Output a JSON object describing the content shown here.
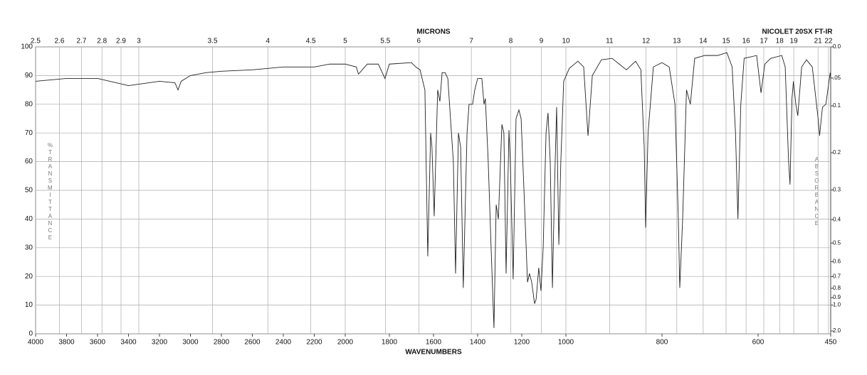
{
  "chart_data": {
    "type": "line",
    "title": "NICOLET 20SX FT-IR",
    "xlabel": "WAVENUMBERS",
    "x2label": "MICRONS",
    "ylabel": "%TRANSMITTANCE",
    "y2label": "ABSORBANCE",
    "x": [
      4000,
      3800,
      3600,
      3400,
      3200,
      3100,
      3080,
      3060,
      3000,
      2900,
      2800,
      2600,
      2400,
      2200,
      2100,
      2000,
      1950,
      1940,
      1900,
      1850,
      1820,
      1800,
      1700,
      1680,
      1661,
      1639,
      1626,
      1613,
      1607,
      1597,
      1581,
      1571,
      1561,
      1548,
      1535,
      1523,
      1510,
      1500,
      1487,
      1477,
      1465,
      1448,
      1439,
      1423,
      1413,
      1400,
      1381,
      1371,
      1365,
      1352,
      1339,
      1326,
      1316,
      1306,
      1290,
      1281,
      1271,
      1258,
      1252,
      1239,
      1226,
      1213,
      1203,
      1190,
      1174,
      1165,
      1155,
      1142,
      1135,
      1123,
      1113,
      1103,
      1090,
      1081,
      1071,
      1061,
      1052,
      1042,
      1032,
      1023,
      1010,
      993,
      975,
      963,
      954,
      945,
      926,
      904,
      889,
      874,
      855,
      844,
      837,
      834,
      829,
      818,
      800,
      785,
      773,
      766,
      763,
      757,
      749,
      741,
      732,
      711,
      684,
      665,
      654,
      647,
      642,
      636,
      629,
      603,
      594,
      586,
      574,
      551,
      544,
      537,
      534,
      530,
      527,
      522,
      518,
      510,
      500,
      488,
      476,
      473,
      467,
      460,
      451,
      450
    ],
    "series": [
      {
        "name": "%T",
        "color": "#222222",
        "values": [
          88,
          89,
          89,
          86.5,
          88,
          87.5,
          85,
          88,
          90,
          91,
          91.5,
          92,
          93,
          93,
          94,
          94,
          93,
          90.5,
          94,
          94,
          89,
          94,
          94.5,
          93,
          92,
          85,
          27,
          70,
          65,
          41,
          85,
          81,
          91,
          91,
          89,
          75,
          60,
          21,
          70,
          65,
          16,
          70,
          80,
          80,
          85,
          89,
          89,
          80,
          82,
          60,
          30,
          2,
          45,
          40,
          73,
          70,
          21,
          71,
          60,
          19,
          75,
          78,
          75,
          50,
          18,
          21,
          18,
          10.5,
          12,
          23,
          15,
          30,
          70,
          77,
          60,
          16,
          50,
          79,
          31,
          60,
          88,
          92.5,
          95,
          93,
          69,
          90,
          95.5,
          96,
          94,
          92,
          95,
          92,
          65,
          37,
          70,
          93,
          94.5,
          93,
          80,
          40,
          16,
          40,
          85,
          80,
          96,
          97,
          97,
          98,
          93,
          70,
          40,
          80,
          96,
          97,
          84,
          94,
          96,
          97,
          93,
          60,
          52,
          82,
          88,
          80,
          76,
          93,
          95.5,
          93,
          75,
          69,
          79,
          80,
          91,
          89
        ]
      }
    ],
    "xlim": [
      4000,
      450
    ],
    "xticks": [
      4000,
      3800,
      3600,
      3400,
      3200,
      3000,
      2800,
      2600,
      2400,
      2200,
      2000,
      1800,
      1600,
      1400,
      1200,
      1000,
      800,
      600,
      450
    ],
    "x2ticks": [
      2.5,
      2.6,
      2.7,
      2.8,
      2.9,
      3,
      3.5,
      4,
      4.5,
      5,
      5.5,
      6,
      7,
      8,
      9,
      10,
      11,
      12,
      13,
      14,
      15,
      16,
      17,
      18,
      19,
      21,
      22
    ],
    "ylim": [
      0,
      100
    ],
    "yticks": [
      0,
      10,
      20,
      30,
      40,
      50,
      60,
      70,
      80,
      90,
      100
    ],
    "y2ticks": [
      {
        "value": 0,
        "label": "0.0"
      },
      {
        "value": 0.05,
        "label": ".05"
      },
      0.1,
      0.2,
      0.3,
      0.4,
      0.5,
      0.6,
      0.7,
      0.8,
      0.9,
      {
        "value": 1,
        "label": "1.0"
      },
      {
        "value": 2,
        "label": "2.0"
      }
    ],
    "grid": true
  }
}
